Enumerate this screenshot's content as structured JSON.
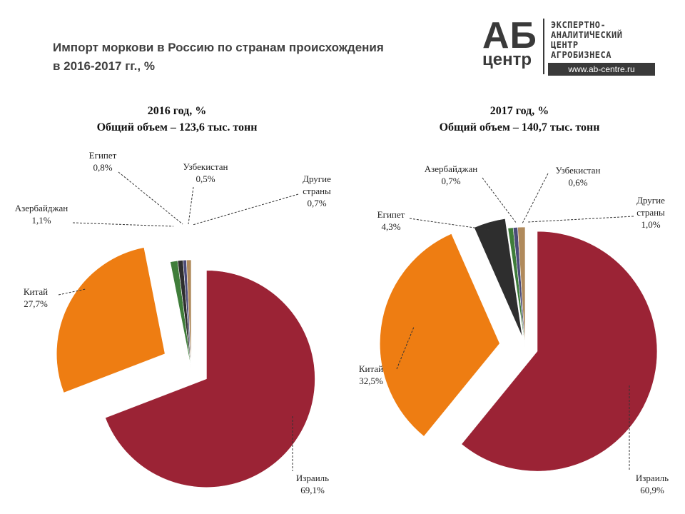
{
  "title_line1": "Импорт моркови в Россию по странам происхождения",
  "title_line2": "в 2016-2017 гг., %",
  "logo": {
    "ab": "АБ",
    "center": "центр",
    "line1": "ЭКСПЕРТНО-",
    "line2": "АНАЛИТИЧЕСКИЙ",
    "line3": "ЦЕНТР",
    "line4": "АГРОБИЗНЕСА",
    "url": "www.ab-centre.ru"
  },
  "chart_data": [
    {
      "type": "pie",
      "title": "2016 год, %",
      "subtitle": "Общий объем – 123,6 тыс. тонн",
      "unit": "%",
      "slices": [
        {
          "name": "Израиль",
          "value": 69.1,
          "label": "69,1%",
          "color": "#9b2335"
        },
        {
          "name": "Китай",
          "value": 27.7,
          "label": "27,7%",
          "color": "#ee7d12"
        },
        {
          "name": "Азербайджан",
          "value": 1.1,
          "label": "1,1%",
          "color": "#3f7d3a"
        },
        {
          "name": "Египет",
          "value": 0.8,
          "label": "0,8%",
          "color": "#2e2e2e"
        },
        {
          "name": "Узбекистан",
          "value": 0.5,
          "label": "0,5%",
          "color": "#4b4b78"
        },
        {
          "name": "Другие страны",
          "value": 0.7,
          "label": "0,7%",
          "color": "#b08a5c"
        }
      ]
    },
    {
      "type": "pie",
      "title": "2017 год, %",
      "subtitle": "Общий объем – 140,7 тыс. тонн",
      "unit": "%",
      "slices": [
        {
          "name": "Израиль",
          "value": 60.9,
          "label": "60,9%",
          "color": "#9b2335"
        },
        {
          "name": "Китай",
          "value": 32.5,
          "label": "32,5%",
          "color": "#ee7d12"
        },
        {
          "name": "Египет",
          "value": 4.3,
          "label": "4,3%",
          "color": "#2e2e2e"
        },
        {
          "name": "Азербайджан",
          "value": 0.7,
          "label": "0,7%",
          "color": "#3f7d3a"
        },
        {
          "name": "Узбекистан",
          "value": 0.6,
          "label": "0,6%",
          "color": "#4b4b78"
        },
        {
          "name": "Другие страны",
          "value": 1.0,
          "label": "1,0%",
          "color": "#b08a5c"
        }
      ]
    }
  ]
}
